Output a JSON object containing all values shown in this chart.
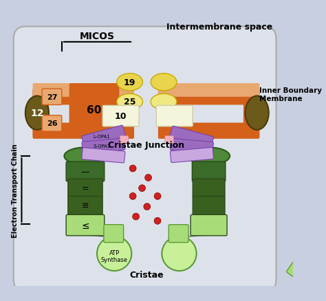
{
  "bg_color": "#c8cfe0",
  "inner_bg": "#d8dde8",
  "title_intermembrane": "Intermembrane space",
  "title_micos": "MICOS",
  "title_ibm": "Inner Boundary\nMembrane",
  "title_cj": "Cristae Junction",
  "title_etc": "Electron Transport Chain",
  "title_cristae": "Cristae",
  "label_19": "19",
  "label_25": "25",
  "label_60": "60",
  "label_10": "10",
  "label_27": "27",
  "label_26": "26",
  "label_12": "12",
  "label_lopa1": "L-OPA1",
  "label_sopa1": "S-OPA1",
  "orange_color": "#d4601a",
  "peach_color": "#e8a870",
  "yellow_color": "#e8d44d",
  "light_yellow": "#f0e880",
  "white_box": "#f5f5dc",
  "purple_color": "#9b6bbf",
  "light_purple": "#c9a8e0",
  "olive_color": "#6b5a1a",
  "dark_green": "#3a6b28",
  "medium_green": "#4e8a38",
  "light_green": "#a8dc78",
  "bright_green": "#c8f098",
  "connector_green": "#5a7a40",
  "red_dot": "#cc2222",
  "gray_line": "#888888"
}
